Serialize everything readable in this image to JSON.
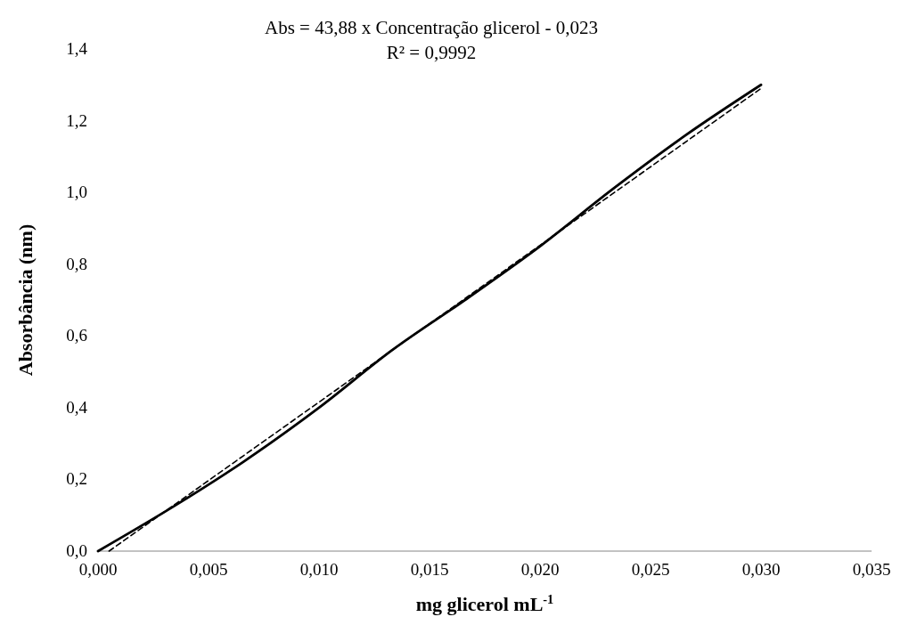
{
  "chart_data": {
    "type": "line",
    "xlabel": "mg glicerol mL$^{-1}$",
    "ylabel": "Absorbância (nm)",
    "annotations": [
      "Abs = 43,88 x Concentração glicerol - 0,023",
      "R² = 0,9992"
    ],
    "xlim": [
      0,
      0.035
    ],
    "xticks": [
      {
        "value": 0,
        "label": "0,000"
      },
      {
        "value": 0.005,
        "label": "0,005"
      },
      {
        "value": 0.01,
        "label": "0,010"
      },
      {
        "value": 0.015,
        "label": "0,015"
      },
      {
        "value": 0.02,
        "label": "0,020"
      },
      {
        "value": 0.025,
        "label": "0,025"
      },
      {
        "value": 0.03,
        "label": "0,030"
      },
      {
        "value": 0.035,
        "label": "0,035"
      }
    ],
    "ylim": [
      0,
      1.4
    ],
    "yticks": [
      {
        "value": 0,
        "label": "0,0"
      },
      {
        "value": 0.2,
        "label": "0,2"
      },
      {
        "value": 0.4,
        "label": "0,4"
      },
      {
        "value": 0.6,
        "label": "0,6"
      },
      {
        "value": 0.8,
        "label": "0,8"
      },
      {
        "value": 1,
        "label": "1,0"
      },
      {
        "value": 1.2,
        "label": "1,2"
      },
      {
        "value": 1.4,
        "label": "1,4"
      }
    ],
    "grid": false,
    "marker": "none",
    "series": [
      {
        "color": "#000000",
        "line_style": "solid",
        "x": [
          0,
          0.0033,
          0.0066,
          0.01,
          0.0133,
          0.0166,
          0.02,
          0.0233,
          0.0266,
          0.03
        ],
        "values": [
          0,
          0.12,
          0.25,
          0.4,
          0.56,
          0.7,
          0.85,
          1.01,
          1.16,
          1.3
        ]
      },
      {
        "type": "line",
        "color": "#000000",
        "line_style": "dashed",
        "x": [
          0.0005,
          0.03
        ],
        "values": [
          0,
          1.29
        ]
      }
    ]
  }
}
